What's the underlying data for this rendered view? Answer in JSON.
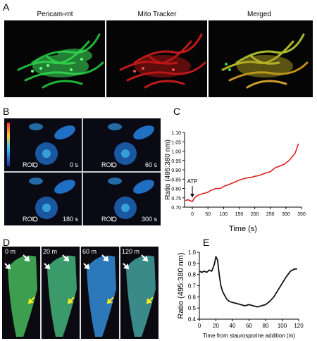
{
  "panels": {
    "a": {
      "letter": "A",
      "images": [
        {
          "title": "Pericam-mt",
          "color": "#2fd94a"
        },
        {
          "title": "Mito Tracker",
          "color": "#e02222"
        },
        {
          "title": "Merged",
          "color": "#d8c430"
        }
      ]
    },
    "b": {
      "letter": "B",
      "tiles": [
        {
          "roi": "ROI",
          "time": "0 s"
        },
        {
          "roi": "ROI",
          "time": "60 s"
        },
        {
          "roi": "ROI",
          "time": "180 s"
        },
        {
          "roi": "ROI",
          "time": "300 s"
        }
      ]
    },
    "c": {
      "letter": "C"
    },
    "d": {
      "letter": "D",
      "tiles": [
        {
          "time": "0 m"
        },
        {
          "time": "20 m"
        },
        {
          "time": "60 m"
        },
        {
          "time": "120 m"
        }
      ]
    },
    "e": {
      "letter": "E"
    }
  },
  "chart_data": [
    {
      "type": "line",
      "panel": "C",
      "title": "",
      "xlabel": "Time (s)",
      "ylabel": "Ratio (495:380 nm)",
      "xlim": [
        -25,
        350
      ],
      "ylim": [
        0.7,
        1.1
      ],
      "x_ticks": [
        0,
        50,
        100,
        150,
        200,
        250,
        300,
        350
      ],
      "y_ticks": [
        0.7,
        0.75,
        0.8,
        0.85,
        0.9,
        0.95,
        1.0,
        1.05,
        1.1
      ],
      "grid": false,
      "line_color": "#e02020",
      "annotation": {
        "text": "ATP",
        "x": 0,
        "y": 0.745
      },
      "series": [
        {
          "x": [
            -22,
            -15,
            -8,
            0,
            5,
            10,
            20,
            30,
            40,
            50,
            60,
            75,
            90,
            100,
            115,
            130,
            150,
            170,
            190,
            200,
            215,
            230,
            250,
            265,
            280,
            295,
            310,
            320,
            330,
            340
          ],
          "values": [
            0.735,
            0.74,
            0.735,
            0.73,
            0.745,
            0.755,
            0.765,
            0.77,
            0.775,
            0.78,
            0.79,
            0.8,
            0.8,
            0.81,
            0.82,
            0.83,
            0.845,
            0.855,
            0.86,
            0.865,
            0.87,
            0.88,
            0.89,
            0.91,
            0.92,
            0.93,
            0.95,
            0.97,
            0.99,
            1.04
          ]
        }
      ]
    },
    {
      "type": "line",
      "panel": "E",
      "title": "",
      "xlabel": "Time from staurosporine addition (m)",
      "ylabel": "Ratio (495:380 nm)",
      "xlim": [
        0,
        120
      ],
      "ylim": [
        0.4,
        1.0
      ],
      "x_ticks": [
        0,
        20,
        40,
        60,
        80,
        100,
        120
      ],
      "y_ticks": [
        0.4,
        0.5,
        0.6,
        0.7,
        0.8,
        0.9,
        1.0
      ],
      "grid": false,
      "line_color": "#111111",
      "series": [
        {
          "x": [
            0,
            3,
            6,
            9,
            12,
            15,
            18,
            20,
            22,
            24,
            26,
            28,
            30,
            33,
            36,
            40,
            45,
            50,
            55,
            60,
            65,
            70,
            75,
            80,
            85,
            90,
            95,
            100,
            105,
            110,
            115,
            118
          ],
          "values": [
            0.83,
            0.82,
            0.83,
            0.82,
            0.84,
            0.83,
            0.89,
            0.96,
            0.93,
            0.8,
            0.7,
            0.65,
            0.62,
            0.58,
            0.56,
            0.55,
            0.54,
            0.53,
            0.52,
            0.53,
            0.52,
            0.51,
            0.52,
            0.53,
            0.56,
            0.6,
            0.66,
            0.72,
            0.78,
            0.83,
            0.85,
            0.85
          ]
        }
      ]
    }
  ]
}
